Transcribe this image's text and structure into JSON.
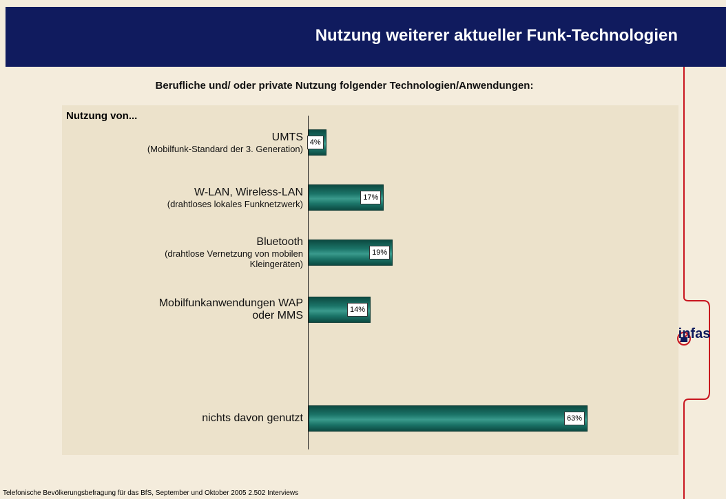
{
  "header": {
    "title": "Nutzung weiterer aktueller Funk-Technologien"
  },
  "chart_data": {
    "type": "bar",
    "orientation": "horizontal",
    "title": "Berufliche und/ oder private Nutzung folgender Technologien/Anwendungen:",
    "y_label": "Nutzung von...",
    "categories": [
      "UMTS",
      "W-LAN, Wireless-LAN",
      "Bluetooth",
      "Mobilfunkanwendungen WAP oder MMS",
      null,
      "nichts davon genutzt"
    ],
    "category_details": [
      "(Mobilfunk-Standard der 3. Generation)",
      "(drahtloses lokales Funknetzwerk)",
      "(drahtlose Vernetzung von mobilen Kleingeräten)",
      null,
      null,
      null
    ],
    "values": [
      4,
      17,
      19,
      14,
      null,
      63
    ],
    "value_labels": [
      "4%",
      "17%",
      "19%",
      "14%",
      null,
      "63%"
    ],
    "color": "#1b7468",
    "xlim": [
      0,
      70
    ]
  },
  "footer": {
    "note": "Telefonische Bevölkerungsbefragung für das BfS, September und Oktober 2005 2.502 Interviews"
  },
  "logo": {
    "text": "infas"
  }
}
